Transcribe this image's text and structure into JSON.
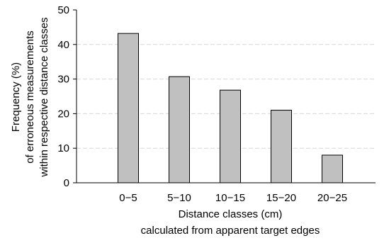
{
  "chart_data": {
    "type": "bar",
    "categories": [
      "0−5",
      "5−10",
      "10−15",
      "15−20",
      "20−25"
    ],
    "values": [
      43.2,
      30.7,
      26.8,
      21.0,
      8.0
    ],
    "xlabel": [
      "Distance classes (cm)",
      "calculated from apparent target edges"
    ],
    "ylabel": [
      "Frequency (%)",
      "of erroneous measurements",
      "within respective distance classes"
    ],
    "ylim": [
      0,
      50
    ],
    "yticks": [
      0,
      10,
      20,
      30,
      40,
      50
    ],
    "grid": true,
    "legend": "none",
    "colors": {
      "bar_fill": "#c0c0c0",
      "bar_stroke": "#000000",
      "grid": "#d8d8d8",
      "axis": "#000000"
    }
  }
}
